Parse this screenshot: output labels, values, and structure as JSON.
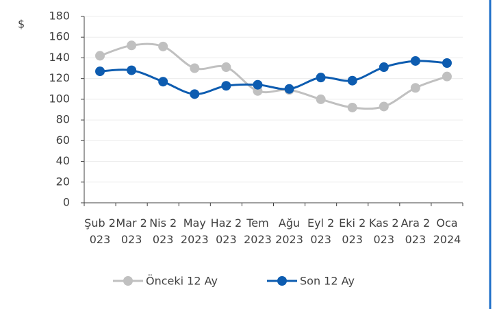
{
  "chart_data": {
    "type": "line",
    "y_label": "$",
    "categories": [
      "Şub 2023",
      "Mar 2023",
      "Nis 2023",
      "May 2023",
      "Haz 2023",
      "Tem 2023",
      "Ağu 2023",
      "Eyl 2023",
      "Eki 2023",
      "Kas 2023",
      "Ara 2023",
      "Oca 2024"
    ],
    "series": [
      {
        "name": "Önceki 12 Ay",
        "color": "#c0c0c0",
        "values": [
          142,
          152,
          151,
          130,
          131,
          108,
          109,
          100,
          92,
          93,
          111,
          122
        ]
      },
      {
        "name": "Son 12 Ay",
        "color": "#0d5cb0",
        "values": [
          127,
          128,
          117,
          105,
          113,
          114,
          110,
          121,
          118,
          131,
          137,
          135
        ]
      }
    ],
    "ylim": [
      0,
      180
    ],
    "yticks": [
      0,
      20,
      40,
      60,
      80,
      100,
      120,
      140,
      160,
      180
    ],
    "grid": true,
    "smooth": true,
    "legend": "bottom"
  }
}
